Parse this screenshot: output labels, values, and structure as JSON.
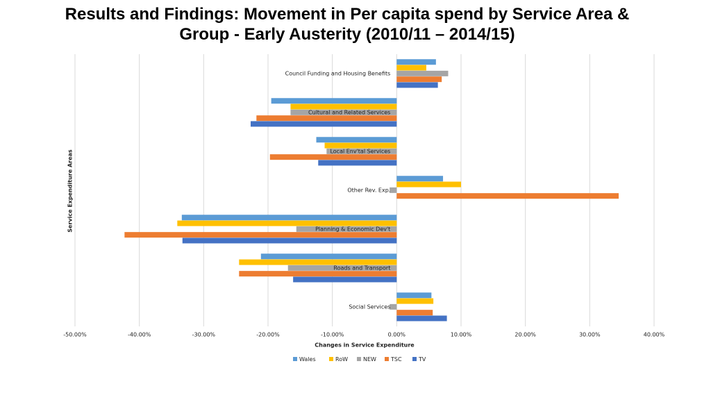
{
  "chart_data": {
    "type": "bar",
    "orientation": "horizontal",
    "title": "Results and Findings: Movement in Per capita spend by Service Area & Group - Early Austerity (2010/11 – 2014/15)",
    "x_label": "Changes in Service Expenditure",
    "y_label": "Service Expenditure Areas",
    "categories": [
      "Council Funding and Housing Benefits",
      "Cultural and Related Services",
      "Local Env'tal Services",
      "Other Rev. Exp.",
      "Planning & Economic Dev't",
      "Roads and Transport",
      "Social Services"
    ],
    "series": [
      {
        "name": "Wales",
        "color": "#5b9bd5",
        "values": [
          6.1,
          -19.5,
          -12.5,
          7.2,
          -33.4,
          -21.1,
          5.4
        ]
      },
      {
        "name": "RoW",
        "color": "#ffc000",
        "values": [
          4.6,
          -16.5,
          -11.2,
          10.0,
          -34.1,
          -24.5,
          5.7
        ]
      },
      {
        "name": "NEW",
        "color": "#a5a5a5",
        "values": [
          8.0,
          -16.5,
          -10.9,
          -1.1,
          -15.6,
          -16.9,
          -1.1
        ]
      },
      {
        "name": "TSC",
        "color": "#ed7d31",
        "values": [
          7.0,
          -21.8,
          -19.7,
          34.5,
          -42.3,
          -24.5,
          5.6
        ]
      },
      {
        "name": "TV",
        "color": "#4472c4",
        "values": [
          6.4,
          -22.7,
          -12.2,
          null,
          -33.3,
          -16.1,
          7.8
        ]
      }
    ],
    "xlim": [
      -50,
      40
    ],
    "xticks": [
      {
        "value": -50,
        "label": "-50.00%"
      },
      {
        "value": -40,
        "label": "-40.00%"
      },
      {
        "value": -30,
        "label": "-30.00%"
      },
      {
        "value": -20,
        "label": "-20.00%"
      },
      {
        "value": -10,
        "label": "-10.00%"
      },
      {
        "value": 0,
        "label": "0.00%"
      },
      {
        "value": 10,
        "label": "10.00%"
      },
      {
        "value": 20,
        "label": "20.00%"
      },
      {
        "value": 30,
        "label": "30.00%"
      },
      {
        "value": 40,
        "label": "40.00%"
      }
    ],
    "grid": true,
    "legend": "bottom"
  }
}
